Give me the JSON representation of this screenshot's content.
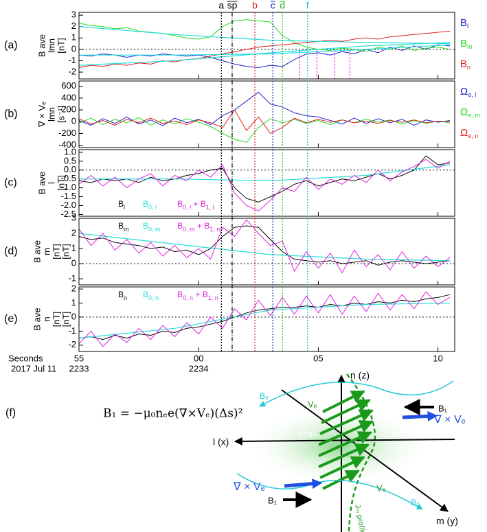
{
  "chart_data": [
    {
      "type": "line",
      "panel": "(a)",
      "ylabel": [
        "B ave",
        "lmn",
        "[nT]"
      ],
      "legend": "right",
      "zero_line": true,
      "xlim": [
        0,
        15.7
      ],
      "ylim": [
        -2.6,
        3.25
      ],
      "yticks": [
        3,
        2,
        1,
        0,
        -1,
        -2
      ],
      "x": [
        0,
        0.5,
        1,
        1.5,
        2,
        2.5,
        3,
        3.5,
        4,
        4.5,
        5,
        5.5,
        6,
        6.5,
        7,
        7.5,
        8,
        8.5,
        9,
        9.5,
        10,
        10.5,
        11,
        11.5,
        12,
        12.5,
        13,
        13.5,
        14,
        14.5,
        15,
        15.5
      ],
      "series": [
        {
          "name": [
            "B",
            "l"
          ],
          "color": "#1f1fd0",
          "values": [
            -0.5,
            -0.6,
            -0.4,
            -0.5,
            -0.7,
            -0.5,
            -0.6,
            -0.4,
            -0.5,
            -0.6,
            -0.5,
            -0.7,
            -1.0,
            -1.3,
            -1.5,
            -1.6,
            -1.4,
            -1.5,
            -0.9,
            -0.4,
            -0.3,
            -0.5,
            -0.2,
            -0.4,
            0.0,
            -0.3,
            0.2,
            -0.1,
            0.3,
            0.0,
            0.4,
            0.3
          ]
        },
        {
          "name": [
            "B",
            "m"
          ],
          "color": "#22dd22",
          "values": [
            2.3,
            2.1,
            2.0,
            1.8,
            1.9,
            1.6,
            1.5,
            1.4,
            1.2,
            1.0,
            0.9,
            1.1,
            2.0,
            2.5,
            2.6,
            2.5,
            2.4,
            1.2,
            0.6,
            0.2,
            0.0,
            -0.1,
            0.1,
            0.0,
            -0.2,
            0.2,
            0.0,
            0.3,
            -0.1,
            0.1,
            0.2,
            0.0
          ]
        },
        {
          "name": [
            "B",
            "n"
          ],
          "color": "#e02020",
          "values": [
            -1.6,
            -1.4,
            -1.5,
            -1.3,
            -1.4,
            -1.2,
            -1.3,
            -1.0,
            -1.1,
            -0.9,
            -0.8,
            -0.6,
            -0.4,
            -0.2,
            0.0,
            0.2,
            0.3,
            0.4,
            0.5,
            0.6,
            0.7,
            0.8,
            0.7,
            0.9,
            1.0,
            0.9,
            1.1,
            1.2,
            1.3,
            1.4,
            1.5,
            1.6
          ]
        },
        {
          "color": "#22dddd",
          "x": [
            0,
            4,
            8,
            12,
            15.5
          ],
          "values": [
            2.0,
            1.3,
            0.8,
            0.6,
            0.5
          ]
        },
        {
          "color": "#22dddd",
          "x": [
            0,
            4,
            8,
            12,
            15.5
          ],
          "values": [
            -0.5,
            -0.5,
            -0.4,
            0.0,
            0.4
          ]
        },
        {
          "color": "#22dddd",
          "x": [
            0,
            4,
            8,
            12,
            15.5
          ],
          "values": [
            -1.4,
            -1.0,
            -0.3,
            0.3,
            0.6
          ]
        }
      ],
      "markers": [
        9.22,
        9.94,
        10.69,
        11.32
      ],
      "marker_color": "#e020e0"
    },
    {
      "type": "line",
      "panel": "(b)",
      "ylabel": [
        "∇ × Vₑ",
        "lmn",
        "[s⁻¹]"
      ],
      "legend": "right",
      "zero_line": false,
      "xlim": [
        0,
        15.7
      ],
      "ylim": [
        -440,
        690
      ],
      "yticks": [
        600,
        400,
        200,
        0,
        -200,
        -400
      ],
      "x": [
        0,
        0.5,
        1,
        1.5,
        2,
        2.5,
        3,
        3.5,
        4,
        4.5,
        5,
        5.5,
        6,
        6.5,
        7,
        7.5,
        8,
        8.5,
        9,
        9.5,
        10,
        10.5,
        11,
        11.5,
        12,
        12.5,
        13,
        13.5,
        14,
        14.5,
        15,
        15.5
      ],
      "series": [
        {
          "name": [
            "Ω",
            "e, l"
          ],
          "color": "#1f1fd0",
          "values": [
            20,
            -60,
            50,
            -30,
            80,
            -40,
            30,
            -70,
            60,
            -20,
            40,
            -50,
            100,
            200,
            350,
            500,
            300,
            250,
            150,
            100,
            80,
            20,
            -40,
            60,
            -30,
            50,
            -20,
            40,
            -60,
            30,
            -10,
            20
          ]
        },
        {
          "name": [
            "Ω",
            "e, m"
          ],
          "color": "#22dd22",
          "values": [
            -30,
            60,
            -50,
            40,
            -20,
            70,
            -60,
            30,
            -40,
            50,
            -10,
            -80,
            -200,
            -300,
            -350,
            -100,
            50,
            -20,
            40,
            -30,
            20,
            -50,
            30,
            -20,
            40,
            -10,
            30,
            -40,
            20,
            -30,
            10,
            -20
          ]
        },
        {
          "name": [
            "Ω",
            "e, n"
          ],
          "color": "#e02020",
          "values": [
            50,
            -40,
            20,
            -60,
            40,
            -20,
            60,
            -30,
            10,
            -50,
            30,
            -20,
            -100,
            200,
            -150,
            80,
            -200,
            -100,
            60,
            -20,
            40,
            -10,
            30,
            -20,
            10,
            -30,
            20,
            -10,
            30,
            -20,
            10,
            0
          ]
        }
      ]
    },
    {
      "type": "line",
      "panel": "(c)",
      "ylabel": [
        "B ave",
        "l",
        "[nT]"
      ],
      "legend": "lower left",
      "zero_line": true,
      "xlim": [
        0,
        15.7
      ],
      "ylim": [
        -2.6,
        1.15
      ],
      "yticks": [
        {
          "value": 1,
          "label": "1.0"
        },
        0.5,
        {
          "value": 0,
          "label": "0.0"
        },
        -0.5,
        {
          "value": -1,
          "label": "-1.0"
        },
        -1.5,
        {
          "value": -2,
          "label": "-2.0"
        },
        -2.5
      ],
      "x": [
        0,
        0.5,
        1,
        1.5,
        2,
        2.5,
        3,
        3.5,
        4,
        4.5,
        5,
        5.5,
        6,
        6.5,
        7,
        7.5,
        8,
        8.5,
        9,
        9.5,
        10,
        10.5,
        11,
        11.5,
        12,
        12.5,
        13,
        13.5,
        14,
        14.5,
        15,
        15.5
      ],
      "series": [
        {
          "name": [
            "B",
            "l"
          ],
          "color": "#000000",
          "values": [
            -0.6,
            -0.7,
            -0.5,
            -0.6,
            -0.5,
            -0.7,
            -0.4,
            -0.6,
            -0.5,
            -0.3,
            -0.2,
            0.0,
            0.1,
            -1.0,
            -1.6,
            -1.8,
            -1.5,
            -1.2,
            -0.8,
            -0.6,
            -0.9,
            -0.7,
            -0.5,
            -0.6,
            -0.4,
            -0.2,
            -0.5,
            -0.3,
            0.0,
            0.8,
            0.3,
            0.4
          ]
        },
        {
          "name": [
            "B",
            "0, l"
          ],
          "color": "#22dddd",
          "x": [
            0,
            4,
            8,
            12,
            15.5
          ],
          "values": [
            -0.5,
            -0.5,
            -0.6,
            -0.3,
            0.3
          ]
        },
        {
          "name": [
            "B",
            "0, l",
            " + B",
            "1, l"
          ],
          "color": "#e020e0",
          "values": [
            -0.8,
            -0.3,
            -0.9,
            -0.4,
            -1.0,
            -0.5,
            -0.2,
            -0.9,
            -0.3,
            -0.6,
            0.0,
            -0.4,
            0.3,
            -1.3,
            -2.0,
            -2.3,
            -1.7,
            -1.0,
            -1.2,
            -0.4,
            -1.1,
            -0.5,
            -0.8,
            -0.3,
            -0.7,
            0.0,
            -0.6,
            -0.1,
            0.2,
            0.6,
            0.1,
            0.5
          ]
        }
      ]
    },
    {
      "type": "line",
      "panel": "(d)",
      "ylabel": [
        "B ave",
        "m",
        "[nT]",
        "[nT]"
      ],
      "legend": "upper left",
      "zero_line": true,
      "xlim": [
        0,
        15.7
      ],
      "ylim": [
        -1.4,
        3
      ],
      "yticks": [
        3,
        2,
        1,
        0,
        -1
      ],
      "x": [
        0,
        0.5,
        1,
        1.5,
        2,
        2.5,
        3,
        3.5,
        4,
        4.5,
        5,
        5.5,
        6,
        6.5,
        7,
        7.5,
        8,
        8.5,
        9,
        9.5,
        10,
        10.5,
        11,
        11.5,
        12,
        12.5,
        13,
        13.5,
        14,
        14.5,
        15,
        15.5
      ],
      "series": [
        {
          "name": [
            "B",
            "m"
          ],
          "color": "#000000",
          "values": [
            1.8,
            1.6,
            1.7,
            1.4,
            1.3,
            1.2,
            1.0,
            1.1,
            0.8,
            0.9,
            0.6,
            1.0,
            1.8,
            2.4,
            2.5,
            2.4,
            1.6,
            0.8,
            0.3,
            0.2,
            0.1,
            0.2,
            0.0,
            0.1,
            0.2,
            -0.1,
            0.1,
            0.2,
            0.1,
            0.0,
            0.1,
            0.2
          ]
        },
        {
          "name": [
            "B",
            "0, m"
          ],
          "color": "#22dddd",
          "x": [
            0,
            4,
            8,
            12,
            15.5
          ],
          "values": [
            2.0,
            1.3,
            0.6,
            0.3,
            0.2
          ]
        },
        {
          "name": [
            "B",
            "0, m",
            " + B",
            "1, m"
          ],
          "color": "#e020e0",
          "values": [
            2.3,
            1.2,
            2.0,
            0.9,
            1.6,
            0.7,
            1.4,
            0.5,
            1.2,
            0.4,
            1.0,
            0.3,
            2.4,
            1.8,
            2.9,
            2.0,
            1.2,
            1.5,
            -0.5,
            0.8,
            -0.3,
            0.7,
            -0.6,
            0.9,
            -0.2,
            0.6,
            -0.4,
            0.8,
            -0.3,
            0.5,
            -0.2,
            0.4
          ]
        }
      ]
    },
    {
      "type": "line",
      "panel": "(e)",
      "ylabel": [
        "B ave",
        "n",
        "[nT]",
        "[nT]"
      ],
      "legend": "upper left",
      "zero_line": true,
      "xlim": [
        0,
        15.7
      ],
      "ylim": [
        -2.45,
        2.15
      ],
      "yticks": [
        2,
        1,
        0,
        -1,
        -2
      ],
      "xticks": [
        {
          "value": 0,
          "label": "55"
        },
        {
          "value": 5,
          "label": "00"
        },
        {
          "value": 10,
          "label": "05"
        },
        {
          "value": 15,
          "label": "10"
        }
      ],
      "hour_labels": [
        {
          "value": 0,
          "label": "2233"
        },
        {
          "value": 5,
          "label": "2234"
        }
      ],
      "xlabel": [
        "Seconds",
        "2017 Jul 11"
      ],
      "x": [
        0,
        0.5,
        1,
        1.5,
        2,
        2.5,
        3,
        3.5,
        4,
        4.5,
        5,
        5.5,
        6,
        6.5,
        7,
        7.5,
        8,
        8.5,
        9,
        9.5,
        10,
        10.5,
        11,
        11.5,
        12,
        12.5,
        13,
        13.5,
        14,
        14.5,
        15,
        15.5
      ],
      "series": [
        {
          "name": [
            "B",
            "n"
          ],
          "color": "#000000",
          "values": [
            -1.5,
            -1.4,
            -1.6,
            -1.3,
            -1.5,
            -1.2,
            -1.3,
            -1.0,
            -1.1,
            -0.8,
            -0.7,
            -0.5,
            -0.3,
            0.0,
            0.3,
            0.5,
            0.6,
            0.7,
            0.7,
            0.8,
            0.7,
            0.9,
            0.8,
            1.0,
            0.9,
            1.1,
            1.0,
            1.2,
            1.1,
            1.3,
            1.4,
            1.6
          ]
        },
        {
          "name": [
            "B",
            "0, n"
          ],
          "color": "#22dddd",
          "x": [
            0,
            4,
            8,
            12,
            15.5
          ],
          "values": [
            -1.5,
            -0.8,
            0.5,
            0.9,
            1.0
          ]
        },
        {
          "name": [
            "B",
            "0, n",
            " + B",
            "1, n"
          ],
          "color": "#e020e0",
          "values": [
            -1.9,
            -1.0,
            -2.1,
            -1.2,
            -1.8,
            -0.8,
            -1.6,
            -0.6,
            -1.4,
            -0.4,
            -1.2,
            0.0,
            -0.8,
            0.6,
            -0.2,
            1.2,
            0.1,
            1.4,
            0.2,
            1.5,
            0.3,
            1.6,
            0.2,
            1.5,
            0.4,
            1.7,
            0.5,
            1.6,
            0.6,
            1.8,
            0.9,
            1.4
          ]
        }
      ]
    }
  ],
  "events": [
    {
      "label": "a",
      "x": 5.95,
      "color": "#000000",
      "style": "dot",
      "overline": false
    },
    {
      "label": "sp",
      "x": 6.4,
      "color": "#000000",
      "style": "dashdot",
      "overline": true
    },
    {
      "label": "b",
      "x": 7.35,
      "color": "#e02020",
      "style": "dot",
      "overline": false
    },
    {
      "label": "c",
      "x": 8.1,
      "color": "#1f1fd0",
      "style": "dot",
      "overline": true
    },
    {
      "label": "d",
      "x": 8.5,
      "color": "#22bb22",
      "style": "dot",
      "overline": true
    },
    {
      "label": "f",
      "x": 9.55,
      "color": "#22bbcc",
      "style": "dot",
      "overline": false
    }
  ],
  "diagram": {
    "panel": "(f)",
    "equation": "B₁ = −μ₀nₑe(∇×Vₑ)(Δs)²",
    "n_axis": "n (z)",
    "l_axis": "l (x)",
    "m_axis": "m (y)",
    "edr": "EDR",
    "b0_top": "B₀",
    "b0_bottom": "B₀",
    "ve_top": "Vₑ",
    "ve_bottom": "Vₑ",
    "b1_top": "B₁",
    "b1_bottom": "B₁",
    "curl_top": "∇ × Vₑ",
    "curl_bottom": "∇ × Vₑ",
    "jm": "Jₘ profile"
  }
}
